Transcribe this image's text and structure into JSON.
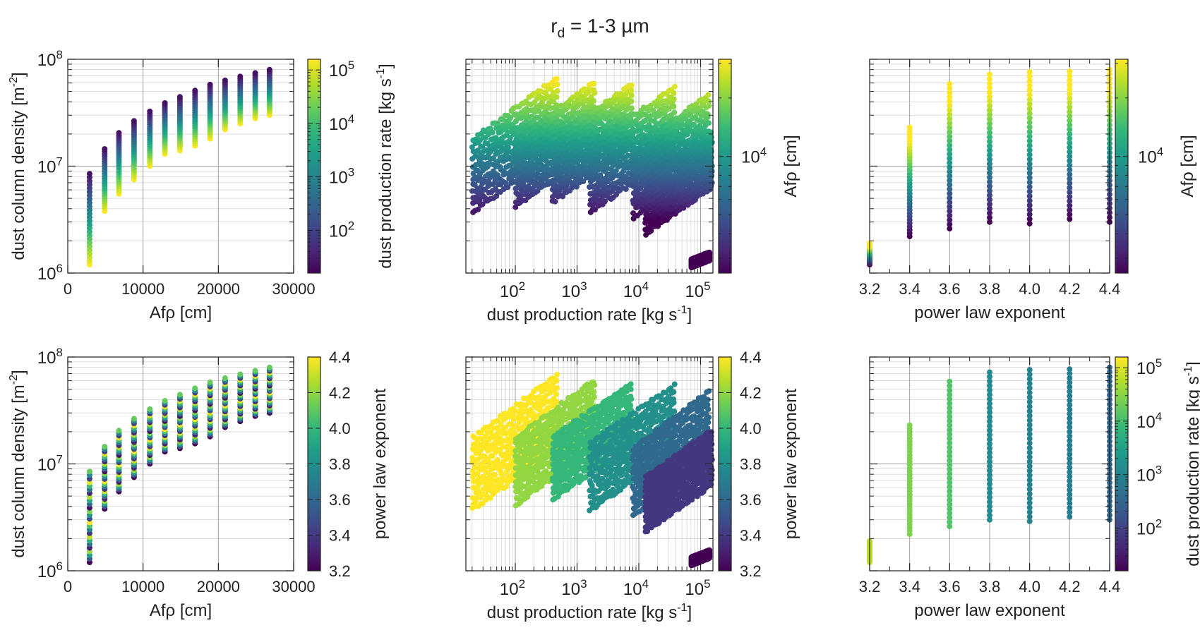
{
  "figure": {
    "title_main": "r",
    "title_sub": "d",
    "title_rest": " = 1-3 µm"
  },
  "labels": {
    "afrho_cm": "Afρ [cm]",
    "density": "dust column density [m",
    "density_exp": "-2",
    "density_close": "]",
    "dpr": "dust production rate [kg s",
    "dpr_exp": "-1",
    "dpr_close": "]",
    "power": "power law exponent",
    "pow_base": "10"
  },
  "ticks": {
    "afrho_lin": [
      "0",
      "10000",
      "20000",
      "30000"
    ],
    "density_exp": [
      "6",
      "7",
      "8"
    ],
    "dpr_exp": [
      "2",
      "3",
      "4",
      "5"
    ],
    "power": [
      "3.2",
      "3.4",
      "3.6",
      "3.8",
      "4.0",
      "4.2",
      "4.4"
    ],
    "cb_dpr_exp": [
      "2",
      "3",
      "4",
      "5"
    ],
    "cb_power": [
      "3.2",
      "3.4",
      "3.6",
      "3.8",
      "4.0",
      "4.2",
      "4.4"
    ],
    "cb_afrho_exp": [
      "4"
    ]
  },
  "colors": {
    "viridis": [
      "#440154",
      "#482878",
      "#3e4989",
      "#31688e",
      "#26828e",
      "#1f9e89",
      "#35b779",
      "#6ece58",
      "#b5de2b",
      "#fde725"
    ],
    "grid": "#c8c8c8",
    "grid_major": "#a0a0a0",
    "axis": "#222222"
  },
  "chart_data": [
    {
      "type": "scatter",
      "id": "p1",
      "x_quantity": "Afρ [cm]",
      "y_quantity": "dust column density [m-2]",
      "color_quantity": "dust production rate [kg s-1]",
      "xlim": [
        0,
        30000
      ],
      "ylim_log10": [
        6,
        8
      ],
      "color_range_log10": [
        1.2,
        5.2
      ],
      "afrho_values": [
        2900,
        4900,
        6800,
        8800,
        10900,
        12900,
        14900,
        16900,
        18900,
        20900,
        22900,
        24900,
        26800
      ],
      "density_min": [
        1200000.0,
        3800000.0,
        5500000.0,
        7500000.0,
        10000000.0,
        13000000.0,
        14000000.0,
        15500000.0,
        18000000.0,
        22000000.0,
        25000000.0,
        28000000.0,
        30000000.0
      ],
      "density_max": [
        8500000.0,
        14500000.0,
        20500000.0,
        26500000.0,
        32500000.0,
        39000000.0,
        44500000.0,
        51000000.0,
        58000000.0,
        63500000.0,
        69000000.0,
        74500000.0,
        80000000.0
      ]
    },
    {
      "type": "scatter",
      "id": "p2",
      "x_quantity": "dust production rate [kg s-1]",
      "y_quantity": "dust column density [m-2]",
      "color_quantity": "Afρ [cm]",
      "xlim_log10": [
        1.2,
        5.2
      ],
      "ylim_log10": [
        6,
        8
      ],
      "color_range_log10": [
        3.4,
        4.5
      ],
      "bands": [
        {
          "power": 4.4,
          "x_log10": [
            1.3,
            2.7
          ],
          "y_log10": [
            6.55,
            7.88
          ]
        },
        {
          "power": 4.2,
          "x_log10": [
            2.0,
            3.3
          ],
          "y_log10": [
            6.6,
            7.83
          ]
        },
        {
          "power": 4.0,
          "x_log10": [
            2.6,
            3.9
          ],
          "y_log10": [
            6.65,
            7.8
          ]
        },
        {
          "power": 3.8,
          "x_log10": [
            3.2,
            4.6
          ],
          "y_log10": [
            6.55,
            7.78
          ]
        },
        {
          "power": 3.6,
          "x_log10": [
            3.9,
            5.15
          ],
          "y_log10": [
            6.5,
            7.72
          ]
        },
        {
          "power": 3.4,
          "x_log10": [
            4.1,
            5.2
          ],
          "y_log10": [
            6.35,
            7.35
          ]
        },
        {
          "power": 3.2,
          "x_log10": [
            4.85,
            5.15
          ],
          "y_log10": [
            6.05,
            6.2
          ]
        }
      ]
    },
    {
      "type": "scatter",
      "id": "p3",
      "x_quantity": "power law exponent",
      "y_quantity": "dust column density [m-2]",
      "color_quantity": "Afρ [cm]",
      "xlim": [
        3.2,
        4.4
      ],
      "ylim_log10": [
        6,
        8
      ],
      "color_range_log10": [
        3.4,
        4.5
      ],
      "power_values": [
        3.2,
        3.4,
        3.6,
        3.8,
        4.0,
        4.2,
        4.4
      ],
      "density_min": [
        1200000.0,
        2200000.0,
        2600000.0,
        3000000.0,
        2900000.0,
        3200000.0,
        3000000.0
      ],
      "density_max": [
        1900000.0,
        23000000.0,
        59000000.0,
        72000000.0,
        76000000.0,
        77000000.0,
        80000000.0
      ]
    },
    {
      "type": "scatter",
      "id": "p4",
      "x_quantity": "Afρ [cm]",
      "y_quantity": "dust column density [m-2]",
      "color_quantity": "power law exponent",
      "xlim": [
        0,
        30000
      ],
      "ylim_log10": [
        6,
        8
      ],
      "color_range": [
        3.2,
        4.4
      ],
      "afrho_values": [
        2900,
        4900,
        6800,
        8800,
        10900,
        12900,
        14900,
        16900,
        18900,
        20900,
        22900,
        24900,
        26800
      ],
      "density_min": [
        1200000.0,
        3800000.0,
        5500000.0,
        7500000.0,
        10000000.0,
        13000000.0,
        14000000.0,
        15500000.0,
        18000000.0,
        22000000.0,
        25000000.0,
        28000000.0,
        30000000.0
      ],
      "density_max": [
        8500000.0,
        14500000.0,
        20500000.0,
        26500000.0,
        32500000.0,
        39000000.0,
        44500000.0,
        51000000.0,
        58000000.0,
        63500000.0,
        69000000.0,
        74500000.0,
        80000000.0
      ]
    },
    {
      "type": "scatter",
      "id": "p5",
      "x_quantity": "dust production rate [kg s-1]",
      "y_quantity": "dust column density [m-2]",
      "color_quantity": "power law exponent",
      "xlim_log10": [
        1.2,
        5.2
      ],
      "ylim_log10": [
        6,
        8
      ],
      "color_range": [
        3.2,
        4.4
      ],
      "bands": [
        {
          "power": 4.4,
          "x_log10": [
            1.3,
            2.7
          ],
          "y_log10": [
            6.55,
            7.88
          ]
        },
        {
          "power": 4.2,
          "x_log10": [
            2.0,
            3.3
          ],
          "y_log10": [
            6.6,
            7.83
          ]
        },
        {
          "power": 4.0,
          "x_log10": [
            2.6,
            3.9
          ],
          "y_log10": [
            6.65,
            7.8
          ]
        },
        {
          "power": 3.8,
          "x_log10": [
            3.2,
            4.6
          ],
          "y_log10": [
            6.55,
            7.78
          ]
        },
        {
          "power": 3.6,
          "x_log10": [
            3.9,
            5.15
          ],
          "y_log10": [
            6.5,
            7.72
          ]
        },
        {
          "power": 3.4,
          "x_log10": [
            4.1,
            5.2
          ],
          "y_log10": [
            6.35,
            7.35
          ]
        },
        {
          "power": 3.2,
          "x_log10": [
            4.85,
            5.15
          ],
          "y_log10": [
            6.05,
            6.2
          ]
        }
      ]
    },
    {
      "type": "scatter",
      "id": "p6",
      "x_quantity": "power law exponent",
      "y_quantity": "dust column density [m-2]",
      "color_quantity": "dust production rate [kg s-1]",
      "xlim": [
        3.2,
        4.4
      ],
      "ylim_log10": [
        6,
        8
      ],
      "color_range_log10": [
        1.2,
        5.2
      ],
      "power_values": [
        3.2,
        3.4,
        3.6,
        3.8,
        4.0,
        4.2,
        4.4
      ],
      "density_min": [
        1200000.0,
        2200000.0,
        2600000.0,
        3000000.0,
        2900000.0,
        3200000.0,
        3000000.0
      ],
      "density_max": [
        1900000.0,
        23000000.0,
        59000000.0,
        72000000.0,
        76000000.0,
        77000000.0,
        80000000.0
      ],
      "color_log10": [
        4.8,
        4.4,
        4.1,
        3.1,
        3.0,
        2.9,
        2.5
      ]
    }
  ]
}
